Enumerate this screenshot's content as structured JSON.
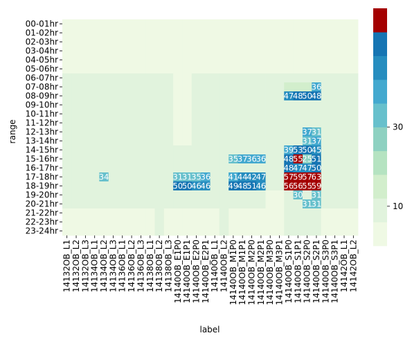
{
  "chart_data": {
    "type": "heatmap",
    "title": "",
    "xlabel": "label",
    "ylabel": "range",
    "x": [
      "14132OB_L1",
      "14132OB_L2",
      "14132OB_L3",
      "14134OB_L1",
      "14134OB_L2",
      "14134OB_L3",
      "14136OB_L1",
      "14136OB_L2",
      "14136OB_L3",
      "14138OB_L1",
      "14138OB_L2",
      "14138OB_L3",
      "14140OB_E1P0",
      "14140OB_E1P1",
      "14140OB_E2P0",
      "14140OB_E2P1",
      "14140OB_L1",
      "14140OB_L2",
      "14140OB_M1P0",
      "14140OB_M1P1",
      "14140OB_M2P0",
      "14140OB_M2P1",
      "14140OB_M3P0",
      "14140OB_M3P1",
      "14140OB_S1P0",
      "14140OB_S1P1",
      "14140OB_S2P0",
      "14140OB_S2P1",
      "14140OB_S3P0",
      "14140OB_S3P1",
      "14142OB_L1",
      "14142OB_L2"
    ],
    "y": [
      "00-01hr",
      "01-02hr",
      "02-03hr",
      "03-04hr",
      "04-05hr",
      "05-06hr",
      "06-07hr",
      "07-08hr",
      "08-09hr",
      "09-10hr",
      "10-11hr",
      "11-12hr",
      "12-13hr",
      "13-14hr",
      "14-15hr",
      "15-16hr",
      "16-17hr",
      "17-18hr",
      "18-19hr",
      "19-20hr",
      "20-21hr",
      "21-22hr",
      "22-23hr",
      "23-24hr"
    ],
    "colorbar": {
      "ticks": [
        10,
        30
      ],
      "colors": [
        "#eff9e4",
        "#e1f3dd",
        "#d2eecc",
        "#b5e3c1",
        "#8ed1c1",
        "#67c0cc",
        "#43a9cf",
        "#268dbf",
        "#1675b3",
        "#a40000"
      ],
      "max_value": 60
    },
    "values": [
      [
        2,
        3.5,
        2,
        1.5,
        2,
        3.5,
        1.5,
        3.5,
        2,
        2,
        3.5,
        2,
        1.5,
        1.5,
        2,
        2,
        2,
        3.5,
        1.5,
        1.5,
        1.5,
        1.5,
        1.5,
        1.5,
        2,
        2,
        2,
        2,
        1.5,
        1.5,
        1.5,
        3.5
      ],
      [
        2,
        3.5,
        2,
        1.5,
        2,
        3.5,
        1.5,
        3.5,
        2,
        2,
        3.5,
        2,
        1.5,
        1.5,
        2,
        2,
        2,
        3.5,
        1.5,
        1.5,
        2,
        2,
        1.5,
        1.5,
        2,
        2,
        2,
        2,
        1.5,
        1.5,
        1.5,
        3.5
      ],
      [
        2,
        3.5,
        2,
        1.5,
        1,
        3.5,
        1.5,
        3.5,
        1.5,
        1.5,
        3.5,
        2,
        1.5,
        1.5,
        2,
        2,
        1.5,
        3.5,
        1.5,
        1.5,
        2,
        2,
        1.5,
        1.5,
        2,
        2,
        2,
        2,
        1.5,
        1.5,
        1.5,
        3.5
      ],
      [
        2,
        3.5,
        2,
        1.5,
        1.5,
        3.5,
        1,
        3.5,
        1.5,
        1,
        3.5,
        2,
        1.5,
        1.5,
        2,
        1.5,
        1.5,
        3.5,
        1.5,
        1.5,
        2,
        2,
        1.5,
        1.5,
        2,
        2,
        2,
        2,
        1.5,
        1.5,
        1.5,
        3.5
      ],
      [
        2,
        3.5,
        2,
        1.5,
        2,
        3.5,
        1.5,
        3.5,
        2,
        2,
        3.5,
        2,
        1.5,
        1.5,
        2,
        2,
        2,
        3.5,
        1.5,
        1.5,
        2,
        2,
        1.5,
        1.5,
        2,
        2,
        2,
        2,
        1.5,
        1.5,
        1.5,
        3.5
      ],
      [
        3.5,
        5,
        3.5,
        3.5,
        3.5,
        5,
        3.5,
        5,
        3.5,
        3.5,
        5,
        3.5,
        1.5,
        1.5,
        3.5,
        3.5,
        3.5,
        5,
        3.5,
        3.5,
        3.5,
        3.5,
        3.5,
        3.5,
        3.5,
        3.5,
        3.5,
        3.5,
        3.5,
        3.5,
        3.5,
        5
      ],
      [
        6,
        8,
        6,
        6,
        6,
        8,
        6,
        6,
        6,
        6,
        8,
        6,
        5,
        5,
        6,
        6,
        6,
        8,
        6,
        6,
        6,
        6,
        6,
        6,
        11,
        11,
        11,
        11,
        6,
        6,
        6,
        8
      ],
      [
        6,
        8,
        6,
        6,
        8,
        8,
        6,
        6,
        6,
        6,
        8,
        6,
        5,
        5,
        8,
        8,
        6,
        8,
        6,
        6,
        6,
        6,
        6,
        6,
        15,
        15,
        15,
        36,
        8,
        8,
        6,
        8
      ],
      [
        6,
        8,
        6,
        6,
        8,
        8,
        6,
        6,
        6,
        6,
        8,
        6,
        5,
        5,
        8,
        8,
        6,
        8,
        6,
        6,
        6,
        11,
        6,
        6,
        47,
        48,
        50,
        48,
        8,
        8,
        6,
        8
      ],
      [
        6,
        8,
        6,
        6,
        6,
        8,
        6,
        6,
        6,
        6,
        8,
        6,
        4,
        4,
        6,
        6,
        6,
        8,
        6,
        6,
        6,
        6,
        6,
        6,
        11,
        11,
        11,
        11,
        6,
        6,
        6,
        8
      ],
      [
        6,
        8,
        6,
        6,
        6,
        8,
        6,
        6,
        6,
        6,
        8,
        6,
        5,
        5,
        6,
        6,
        6,
        8,
        6,
        6,
        6,
        6,
        6,
        6,
        11,
        11,
        11,
        11,
        6,
        6,
        6,
        8
      ],
      [
        6,
        8,
        6,
        6,
        6,
        8,
        6,
        6,
        6,
        6,
        8,
        6,
        5,
        5,
        6,
        6,
        6,
        8,
        6,
        6,
        6,
        6,
        6,
        6,
        11,
        11,
        11,
        11,
        6,
        6,
        6,
        8
      ],
      [
        6,
        8,
        6,
        6,
        8,
        8,
        6,
        6,
        6,
        6,
        8,
        6,
        5,
        5,
        6,
        6,
        6,
        8,
        6,
        6,
        6,
        6,
        6,
        6,
        11,
        11,
        37,
        31,
        6,
        6,
        6,
        8
      ],
      [
        6,
        8,
        6,
        6,
        8,
        8,
        6,
        6,
        6,
        6,
        8,
        6,
        5,
        5,
        6,
        6,
        6,
        8,
        6,
        6,
        6,
        6,
        6,
        6,
        11,
        11,
        31,
        37,
        6,
        6,
        6,
        8
      ],
      [
        8,
        8,
        6,
        6,
        8,
        8,
        6,
        6,
        8,
        6,
        8,
        6,
        6,
        6,
        6,
        6,
        8,
        8,
        8,
        8,
        8,
        8,
        6,
        6,
        39,
        53,
        50,
        45,
        6,
        6,
        8,
        8
      ],
      [
        8,
        8,
        6,
        6,
        8,
        8,
        6,
        6,
        8,
        8,
        8,
        6,
        8,
        8,
        8,
        8,
        8,
        8,
        35,
        37,
        36,
        36,
        6,
        6,
        48,
        55,
        25,
        51,
        8,
        8,
        8,
        8
      ],
      [
        8,
        8,
        6,
        6,
        8,
        8,
        6,
        6,
        8,
        8,
        8,
        6,
        8,
        8,
        8,
        8,
        8,
        8,
        8,
        8,
        8,
        8,
        6,
        6,
        48,
        47,
        47,
        50,
        8,
        8,
        8,
        11
      ],
      [
        11,
        11,
        8,
        8,
        34,
        8,
        11,
        8,
        11,
        11,
        11,
        8,
        31,
        31,
        35,
        36,
        8,
        8,
        41,
        44,
        42,
        47,
        6,
        6,
        57,
        59,
        57,
        63,
        8,
        11,
        8,
        11
      ],
      [
        11,
        11,
        8,
        8,
        11,
        11,
        11,
        11,
        11,
        11,
        11,
        11,
        50,
        50,
        46,
        46,
        8,
        8,
        49,
        48,
        51,
        46,
        6,
        6,
        56,
        56,
        55,
        59,
        8,
        11,
        8,
        11
      ],
      [
        6,
        6,
        6,
        6,
        6,
        6,
        6,
        6,
        6,
        6,
        6,
        6,
        6,
        6,
        6,
        6,
        6,
        6,
        6,
        6,
        6,
        6,
        5,
        5,
        11,
        30,
        11,
        31,
        6,
        6,
        6,
        6
      ],
      [
        6,
        6,
        6,
        6,
        6,
        6,
        6,
        6,
        6,
        6,
        6,
        6,
        6,
        6,
        6,
        6,
        6,
        6,
        6,
        6,
        6,
        6,
        5,
        5,
        11,
        11,
        31,
        31,
        6,
        6,
        6,
        6
      ],
      [
        5,
        5,
        5,
        5,
        5,
        5,
        5,
        5,
        5,
        5,
        6,
        5,
        5,
        5,
        5,
        5,
        5,
        6,
        5,
        5,
        5,
        5,
        4,
        4,
        11,
        11,
        11,
        11,
        5,
        5,
        5,
        5
      ],
      [
        5,
        5,
        5,
        5,
        5,
        5,
        5,
        5,
        5,
        5,
        6,
        5,
        5,
        5,
        5,
        5,
        5,
        6,
        5,
        5,
        5,
        5,
        4,
        4,
        8,
        8,
        8,
        8,
        5,
        5,
        5,
        5
      ],
      [
        4,
        5,
        4,
        4,
        5,
        5,
        5,
        4,
        5,
        5,
        6,
        4,
        3,
        3,
        4,
        4,
        4,
        6,
        4,
        4,
        4,
        4,
        3,
        3,
        6,
        6,
        6,
        6,
        4,
        4,
        4,
        5
      ]
    ],
    "labeled_cells": [
      {
        "row": 7,
        "col": 27,
        "text": "36"
      },
      {
        "row": 8,
        "col": 24,
        "text": "47"
      },
      {
        "row": 8,
        "col": 25,
        "text": "48"
      },
      {
        "row": 8,
        "col": 26,
        "text": "50"
      },
      {
        "row": 8,
        "col": 27,
        "text": "48"
      },
      {
        "row": 12,
        "col": 26,
        "text": "37"
      },
      {
        "row": 12,
        "col": 27,
        "text": "31"
      },
      {
        "row": 13,
        "col": 26,
        "text": "31"
      },
      {
        "row": 13,
        "col": 27,
        "text": "37"
      },
      {
        "row": 14,
        "col": 24,
        "text": "39"
      },
      {
        "row": 14,
        "col": 25,
        "text": "53"
      },
      {
        "row": 14,
        "col": 26,
        "text": "50"
      },
      {
        "row": 14,
        "col": 27,
        "text": "45"
      },
      {
        "row": 15,
        "col": 18,
        "text": "35"
      },
      {
        "row": 15,
        "col": 19,
        "text": "37"
      },
      {
        "row": 15,
        "col": 20,
        "text": "36"
      },
      {
        "row": 15,
        "col": 21,
        "text": "36"
      },
      {
        "row": 15,
        "col": 24,
        "text": "48"
      },
      {
        "row": 15,
        "col": 25,
        "text": "55"
      },
      {
        "row": 15,
        "col": 26,
        "text": "25"
      },
      {
        "row": 15,
        "col": 27,
        "text": "51"
      },
      {
        "row": 16,
        "col": 24,
        "text": "48"
      },
      {
        "row": 16,
        "col": 25,
        "text": "47"
      },
      {
        "row": 16,
        "col": 26,
        "text": "47"
      },
      {
        "row": 16,
        "col": 27,
        "text": "50"
      },
      {
        "row": 17,
        "col": 4,
        "text": "34"
      },
      {
        "row": 17,
        "col": 12,
        "text": "31"
      },
      {
        "row": 17,
        "col": 13,
        "text": "31"
      },
      {
        "row": 17,
        "col": 14,
        "text": "35"
      },
      {
        "row": 17,
        "col": 15,
        "text": "36"
      },
      {
        "row": 17,
        "col": 18,
        "text": "41"
      },
      {
        "row": 17,
        "col": 19,
        "text": "44"
      },
      {
        "row": 17,
        "col": 20,
        "text": "42"
      },
      {
        "row": 17,
        "col": 21,
        "text": "47"
      },
      {
        "row": 17,
        "col": 24,
        "text": "57"
      },
      {
        "row": 17,
        "col": 25,
        "text": "59"
      },
      {
        "row": 17,
        "col": 26,
        "text": "57"
      },
      {
        "row": 17,
        "col": 27,
        "text": "63"
      },
      {
        "row": 18,
        "col": 12,
        "text": "50"
      },
      {
        "row": 18,
        "col": 13,
        "text": "50"
      },
      {
        "row": 18,
        "col": 14,
        "text": "46"
      },
      {
        "row": 18,
        "col": 15,
        "text": "46"
      },
      {
        "row": 18,
        "col": 18,
        "text": "49"
      },
      {
        "row": 18,
        "col": 19,
        "text": "48"
      },
      {
        "row": 18,
        "col": 20,
        "text": "51"
      },
      {
        "row": 18,
        "col": 21,
        "text": "46"
      },
      {
        "row": 18,
        "col": 24,
        "text": "56"
      },
      {
        "row": 18,
        "col": 25,
        "text": "56"
      },
      {
        "row": 18,
        "col": 26,
        "text": "55"
      },
      {
        "row": 18,
        "col": 27,
        "text": "59"
      },
      {
        "row": 19,
        "col": 25,
        "text": "30"
      },
      {
        "row": 19,
        "col": 27,
        "text": "31"
      },
      {
        "row": 20,
        "col": 26,
        "text": "31"
      },
      {
        "row": 20,
        "col": 27,
        "text": "31"
      }
    ]
  }
}
